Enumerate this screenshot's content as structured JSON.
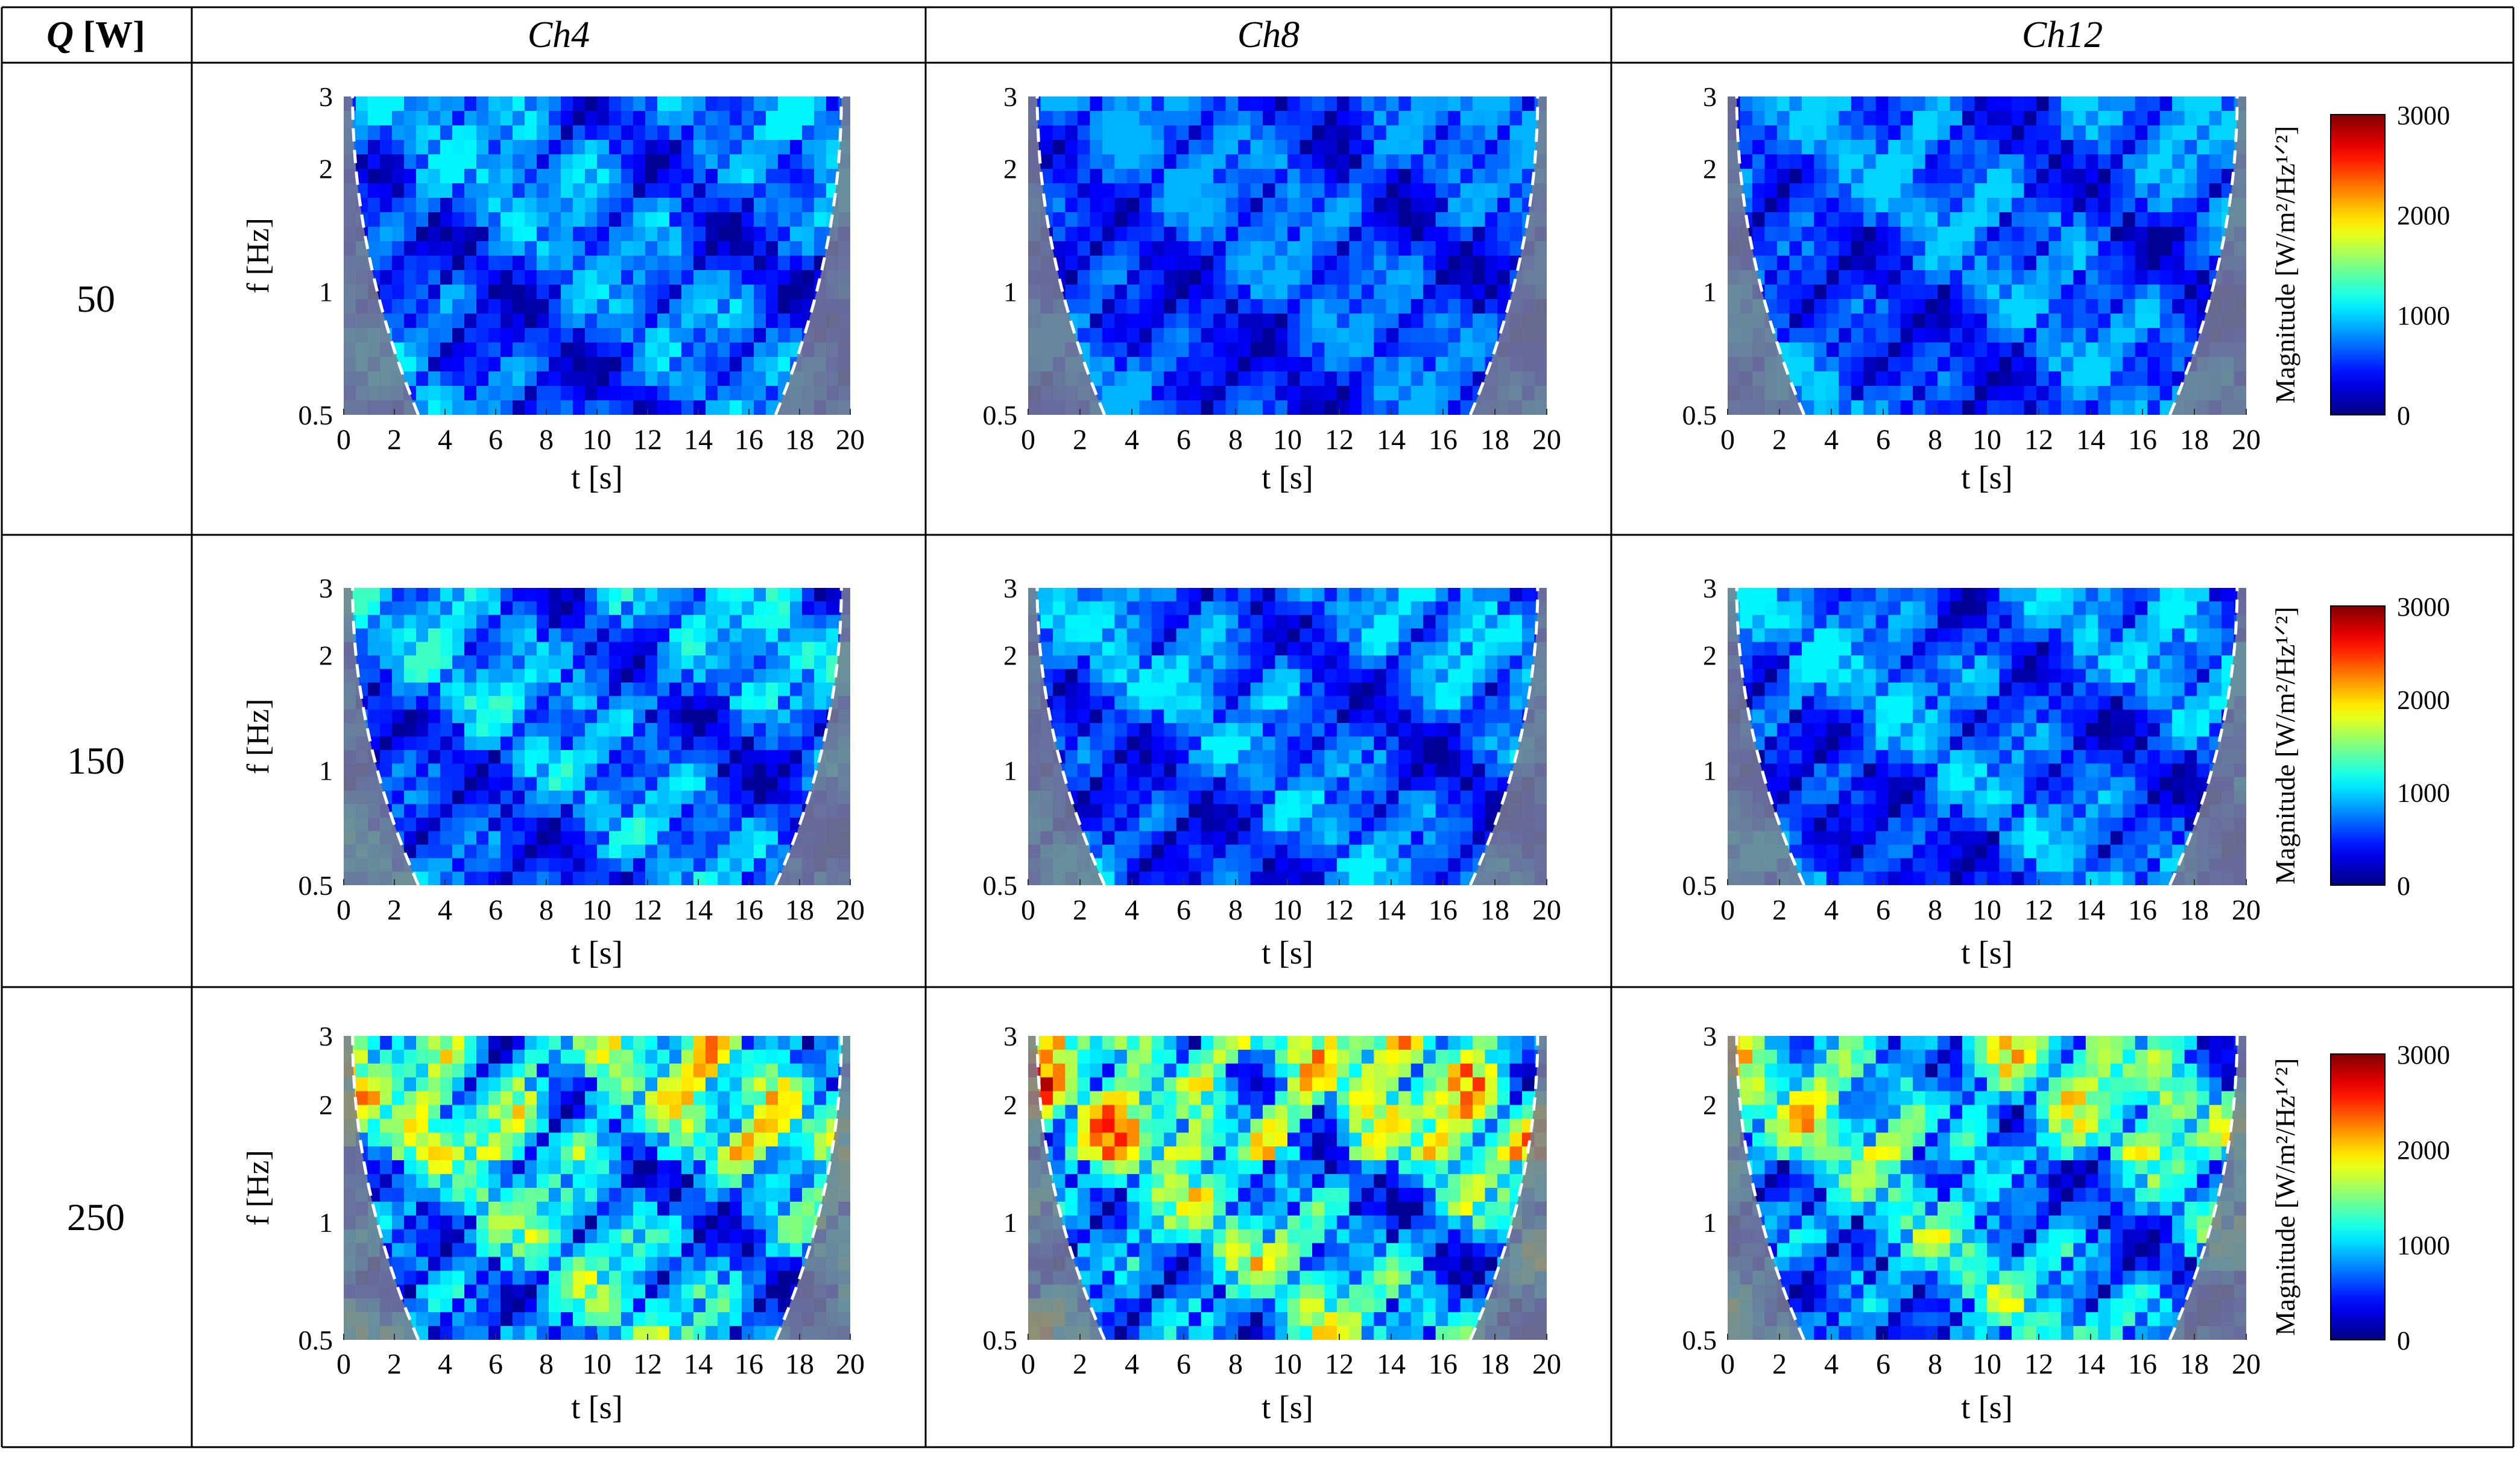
{
  "table": {
    "corner_label_symbol": "Q",
    "corner_label_unit": "[W]",
    "columns": [
      "Ch4",
      "Ch8",
      "Ch12"
    ],
    "rows": [
      "50",
      "150",
      "250"
    ]
  },
  "colors": {
    "cone_shade": "#7a7d8c",
    "cone_edge": "#ffffff",
    "grid_line": "#000000",
    "colormap": "jet"
  },
  "chart_data": {
    "type": "heatmap",
    "xlabel": "t [s]",
    "ylabel": "f [Hz]",
    "x_ticks": [
      "0",
      "2",
      "4",
      "6",
      "8",
      "10",
      "12",
      "14",
      "16",
      "18",
      "20"
    ],
    "y_ticks": [
      "0.5",
      "1",
      "2",
      "3"
    ],
    "xlim": [
      0,
      20
    ],
    "ylim": [
      0.5,
      3
    ],
    "y_scale": "log",
    "colorbar": {
      "label": "Magnitude [W/m²/Hz¹ᐟ²]",
      "ticks": [
        "0",
        "1000",
        "2000",
        "3000"
      ],
      "range": [
        0,
        3000
      ]
    },
    "panels": [
      {
        "row": "50",
        "column": "Ch4",
        "intensity": "low",
        "peak_estimate": 1100
      },
      {
        "row": "50",
        "column": "Ch8",
        "intensity": "low",
        "peak_estimate": 900
      },
      {
        "row": "50",
        "column": "Ch12",
        "intensity": "low",
        "peak_estimate": 1000
      },
      {
        "row": "150",
        "column": "Ch4",
        "intensity": "medium",
        "peak_estimate": 1300
      },
      {
        "row": "150",
        "column": "Ch8",
        "intensity": "low",
        "peak_estimate": 1100
      },
      {
        "row": "150",
        "column": "Ch12",
        "intensity": "low",
        "peak_estimate": 1100
      },
      {
        "row": "250",
        "column": "Ch4",
        "intensity": "high",
        "peak_estimate": 2500
      },
      {
        "row": "250",
        "column": "Ch8",
        "intensity": "high",
        "peak_estimate": 2900
      },
      {
        "row": "250",
        "column": "Ch12",
        "intensity": "high",
        "peak_estimate": 2300
      }
    ]
  }
}
